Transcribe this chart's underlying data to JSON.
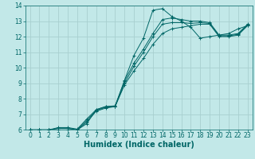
{
  "xlabel": "Humidex (Indice chaleur)",
  "bg_color": "#c2e8e8",
  "grid_color": "#a8d0d0",
  "line_color": "#006666",
  "xlim": [
    -0.5,
    23.5
  ],
  "ylim": [
    6,
    14
  ],
  "xticks": [
    0,
    1,
    2,
    3,
    4,
    5,
    6,
    7,
    8,
    9,
    10,
    11,
    12,
    13,
    14,
    15,
    16,
    17,
    18,
    19,
    20,
    21,
    22,
    23
  ],
  "yticks": [
    6,
    7,
    8,
    9,
    10,
    11,
    12,
    13,
    14
  ],
  "series": [
    {
      "x": [
        0,
        1,
        2,
        3,
        4,
        5,
        6,
        7,
        8,
        9,
        10,
        11,
        12,
        13,
        14,
        15,
        16,
        17,
        18,
        19,
        20,
        21,
        22,
        23
      ],
      "y": [
        6.0,
        6.0,
        6.0,
        6.0,
        6.0,
        6.0,
        6.4,
        7.3,
        7.5,
        7.5,
        9.2,
        10.8,
        11.9,
        13.7,
        13.8,
        13.3,
        13.0,
        12.6,
        11.9,
        12.0,
        12.1,
        12.2,
        12.5,
        12.7
      ]
    },
    {
      "x": [
        0,
        1,
        2,
        3,
        4,
        5,
        6,
        7,
        8,
        9,
        10,
        11,
        12,
        13,
        14,
        15,
        16,
        17,
        18,
        19,
        20,
        21,
        22,
        23
      ],
      "y": [
        6.0,
        6.0,
        6.0,
        6.1,
        6.1,
        6.0,
        6.5,
        7.2,
        7.4,
        7.5,
        8.9,
        9.8,
        10.6,
        11.5,
        12.2,
        12.5,
        12.6,
        12.7,
        12.8,
        12.8,
        12.0,
        12.0,
        12.1,
        12.7
      ]
    },
    {
      "x": [
        0,
        1,
        2,
        3,
        4,
        5,
        6,
        7,
        8,
        9,
        10,
        11,
        12,
        13,
        14,
        15,
        16,
        17,
        18,
        19,
        20,
        21,
        22,
        23
      ],
      "y": [
        6.0,
        6.0,
        6.0,
        6.1,
        6.1,
        6.0,
        6.6,
        7.25,
        7.45,
        7.5,
        9.0,
        10.1,
        11.0,
        12.0,
        12.8,
        12.9,
        12.9,
        12.85,
        12.9,
        12.85,
        12.05,
        12.05,
        12.15,
        12.75
      ]
    },
    {
      "x": [
        0,
        1,
        2,
        3,
        4,
        5,
        6,
        7,
        8,
        9,
        10,
        11,
        12,
        13,
        14,
        15,
        16,
        17,
        18,
        19,
        20,
        21,
        22,
        23
      ],
      "y": [
        6.0,
        6.0,
        6.0,
        6.15,
        6.15,
        6.05,
        6.7,
        7.3,
        7.5,
        7.55,
        9.15,
        10.3,
        11.2,
        12.2,
        13.1,
        13.2,
        13.1,
        13.0,
        13.0,
        12.9,
        12.1,
        12.1,
        12.2,
        12.8
      ]
    }
  ],
  "tick_fontsize": 5.5,
  "xlabel_fontsize": 7
}
